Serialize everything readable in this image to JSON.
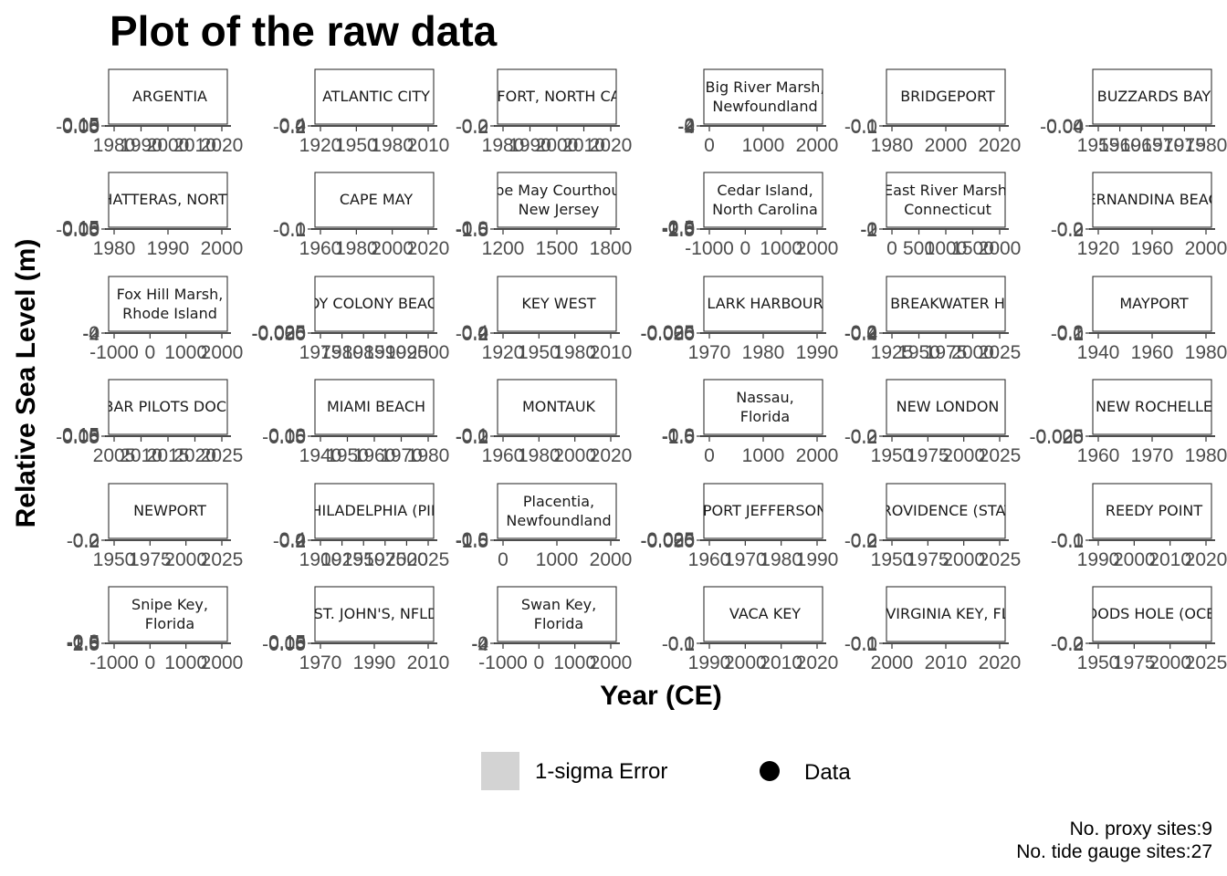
{
  "title": "Plot of the raw data",
  "caption": [
    "No. proxy sites:9",
    "No. tide gauge sites:27"
  ],
  "legend": {
    "error_label": "1-sigma Error",
    "data_label": "Data",
    "colors": {
      "error_fill": "#d3d3d3",
      "data_point": "#000000"
    }
  },
  "chart_data": {
    "type": "scatter",
    "title": "Plot of the raw data",
    "xlabel": "Year (CE)",
    "ylabel": "Relative Sea Level (m)",
    "facet_layout": "6 columns x 6 rows",
    "grid": false,
    "legend_position": "bottom",
    "panels": [
      {
        "label": [
          "ARGENTIA"
        ],
        "xticks": [
          "1980",
          "1990",
          "2000",
          "2010",
          "2020"
        ],
        "yticks": [
          "-0.05",
          "0.00",
          "0.05",
          "0.10",
          "0.15"
        ]
      },
      {
        "label": [
          "ATLANTIC CITY"
        ],
        "xticks": [
          "1920",
          "1950",
          "1980",
          "2010"
        ],
        "yticks": [
          "-0.2",
          "0.0",
          "0.2",
          "0.4"
        ]
      },
      {
        "label": [
          "FORT, NORTH CA"
        ],
        "xticks": [
          "1980",
          "1990",
          "2000",
          "2010",
          "2020"
        ],
        "yticks": [
          "-0.2",
          "0.0",
          "0.2"
        ]
      },
      {
        "label": [
          "Big River Marsh,",
          "Newfoundland"
        ],
        "xticks": [
          "0",
          "1000",
          "2000"
        ],
        "yticks": [
          "-4",
          "-2",
          "0",
          "2"
        ]
      },
      {
        "label": [
          "BRIDGEPORT"
        ],
        "xticks": [
          "1980",
          "2000",
          "2020"
        ],
        "yticks": [
          "-0.1",
          "0.0",
          "0.1"
        ]
      },
      {
        "label": [
          "BUZZARDS BAY"
        ],
        "xticks": [
          "1955",
          "1960",
          "1965",
          "1970",
          "1975",
          "1980"
        ],
        "yticks": [
          "-0.04",
          "0.00",
          "0.04"
        ]
      },
      {
        "label": [
          "HATTERAS, NORTH"
        ],
        "xticks": [
          "1980",
          "1990",
          "2000"
        ],
        "yticks": [
          "-0.05",
          "0.00",
          "0.05",
          "0.10",
          "0.15"
        ]
      },
      {
        "label": [
          "CAPE MAY"
        ],
        "xticks": [
          "1960",
          "1980",
          "2000",
          "2020"
        ],
        "yticks": [
          "-0.1",
          "0.0",
          "0.1"
        ]
      },
      {
        "label": [
          "Cape May Courthouse,",
          "New Jersey"
        ],
        "xticks": [
          "1200",
          "1500",
          "1800"
        ],
        "yticks": [
          "-1.5",
          "-1.0",
          "-0.5",
          "0.0"
        ]
      },
      {
        "label": [
          "Cedar Island,",
          "North Carolina"
        ],
        "xticks": [
          "-1000",
          "0",
          "1000",
          "2000"
        ],
        "yticks": [
          "-2.5",
          "-2.0",
          "-1.5",
          "-1.0",
          "-0.5",
          "0.0"
        ]
      },
      {
        "label": [
          "East River Marsh,",
          "Connecticut"
        ],
        "xticks": [
          "0",
          "500",
          "1000",
          "1500",
          "2000"
        ],
        "yticks": [
          "-2",
          "-1",
          "0"
        ]
      },
      {
        "label": [
          "FERNANDINA BEACH"
        ],
        "xticks": [
          "1920",
          "1960",
          "2000"
        ],
        "yticks": [
          "-0.2",
          "0.0",
          "0.2"
        ]
      },
      {
        "label": [
          "Fox Hill Marsh,",
          "Rhode Island"
        ],
        "xticks": [
          "-1000",
          "0",
          "1000",
          "2000"
        ],
        "yticks": [
          "-4",
          "-2",
          "0"
        ]
      },
      {
        "label": [
          "JOY COLONY BEACH"
        ],
        "xticks": [
          "1975",
          "1980",
          "1985",
          "1990",
          "1995",
          "2000"
        ],
        "yticks": [
          "-0.050",
          "-0.025",
          "0.000",
          "0.025"
        ]
      },
      {
        "label": [
          "KEY WEST"
        ],
        "xticks": [
          "1920",
          "1950",
          "1980",
          "2010"
        ],
        "yticks": [
          "-0.2",
          "0.0",
          "0.2",
          "0.4"
        ]
      },
      {
        "label": [
          "LARK HARBOUR"
        ],
        "xticks": [
          "1970",
          "1980",
          "1990"
        ],
        "yticks": [
          "-0.050",
          "-0.025",
          "0.000",
          "0.025"
        ]
      },
      {
        "label": [
          "BREAKWATER H"
        ],
        "xticks": [
          "1925",
          "1950",
          "1975",
          "2000",
          "2025"
        ],
        "yticks": [
          "-0.4",
          "-0.2",
          "0.0",
          "0.2"
        ]
      },
      {
        "label": [
          "MAYPORT"
        ],
        "xticks": [
          "1940",
          "1960",
          "1980"
        ],
        "yticks": [
          "-0.1",
          "0.0",
          "0.1",
          "0.2"
        ]
      },
      {
        "label": [
          "BAR PILOTS DOCK"
        ],
        "xticks": [
          "2005",
          "2010",
          "2015",
          "2020",
          "2025"
        ],
        "yticks": [
          "-0.05",
          "0.00",
          "0.05",
          "0.10",
          "0.15"
        ]
      },
      {
        "label": [
          "MIAMI BEACH"
        ],
        "xticks": [
          "1940",
          "1950",
          "1960",
          "1970",
          "1980"
        ],
        "yticks": [
          "-0.05",
          "0.00",
          "0.05",
          "0.10"
        ]
      },
      {
        "label": [
          "MONTAUK"
        ],
        "xticks": [
          "1960",
          "1980",
          "2000",
          "2020"
        ],
        "yticks": [
          "-0.2",
          "-0.1",
          "0.0",
          "0.1"
        ]
      },
      {
        "label": [
          "Nassau,",
          "Florida"
        ],
        "xticks": [
          "0",
          "1000",
          "2000"
        ],
        "yticks": [
          "-1.5",
          "-1.0",
          "-0.5",
          "0.0"
        ]
      },
      {
        "label": [
          "NEW LONDON"
        ],
        "xticks": [
          "1950",
          "1975",
          "2000",
          "2025"
        ],
        "yticks": [
          "-0.2",
          "0.0",
          "0.2"
        ]
      },
      {
        "label": [
          "NEW ROCHELLE"
        ],
        "xticks": [
          "1960",
          "1970",
          "1980"
        ],
        "yticks": [
          "-0.025",
          "0.000",
          "0.025"
        ]
      },
      {
        "label": [
          "NEWPORT"
        ],
        "xticks": [
          "1950",
          "1975",
          "2000",
          "2025"
        ],
        "yticks": [
          "-0.2",
          "0.0",
          "0.2"
        ]
      },
      {
        "label": [
          "PHILADELPHIA (PIER"
        ],
        "xticks": [
          "1900",
          "1925",
          "1950",
          "1975",
          "2000",
          "2025"
        ],
        "yticks": [
          "-0.2",
          "0.0",
          "0.2",
          "0.4"
        ]
      },
      {
        "label": [
          "Placentia,",
          "Newfoundland"
        ],
        "xticks": [
          "0",
          "1000",
          "2000"
        ],
        "yticks": [
          "-1.5",
          "-1.0",
          "-0.5",
          "0.0"
        ]
      },
      {
        "label": [
          "PORT JEFFERSON"
        ],
        "xticks": [
          "1960",
          "1970",
          "1980",
          "1990"
        ],
        "yticks": [
          "-0.050",
          "-0.025",
          "0.000",
          "0.025"
        ]
      },
      {
        "label": [
          "PROVIDENCE (STATE"
        ],
        "xticks": [
          "1950",
          "1975",
          "2000",
          "2025"
        ],
        "yticks": [
          "-0.2",
          "0.0",
          "0.2"
        ]
      },
      {
        "label": [
          "REEDY POINT"
        ],
        "xticks": [
          "1990",
          "2000",
          "2010",
          "2020"
        ],
        "yticks": [
          "-0.1",
          "0.0",
          "0.1"
        ]
      },
      {
        "label": [
          "Snipe Key,",
          "Florida"
        ],
        "xticks": [
          "-1000",
          "0",
          "1000",
          "2000"
        ],
        "yticks": [
          "-2.5",
          "-2.0",
          "-1.5",
          "-1.0",
          "-0.5",
          "0.0"
        ]
      },
      {
        "label": [
          "ST. JOHN'S, NFLD"
        ],
        "xticks": [
          "1970",
          "1990",
          "2010"
        ],
        "yticks": [
          "-0.05",
          "0.00",
          "0.05",
          "0.10",
          "0.15"
        ]
      },
      {
        "label": [
          "Swan Key,",
          "Florida"
        ],
        "xticks": [
          "-1000",
          "0",
          "1000",
          "2000"
        ],
        "yticks": [
          "-4",
          "-2",
          "0"
        ]
      },
      {
        "label": [
          "VACA KEY"
        ],
        "xticks": [
          "1990",
          "2000",
          "2010",
          "2020"
        ],
        "yticks": [
          "-0.1",
          "0.0",
          "0.1"
        ]
      },
      {
        "label": [
          "VIRGINIA KEY, FL"
        ],
        "xticks": [
          "2000",
          "2010",
          "2020"
        ],
        "yticks": [
          "-0.1",
          "0.0",
          "0.1"
        ]
      },
      {
        "label": [
          "WOODS HOLE (OCEAN"
        ],
        "xticks": [
          "1950",
          "1975",
          "2000",
          "2025"
        ],
        "yticks": [
          "-0.2",
          "0.0",
          "0.2"
        ]
      }
    ]
  }
}
